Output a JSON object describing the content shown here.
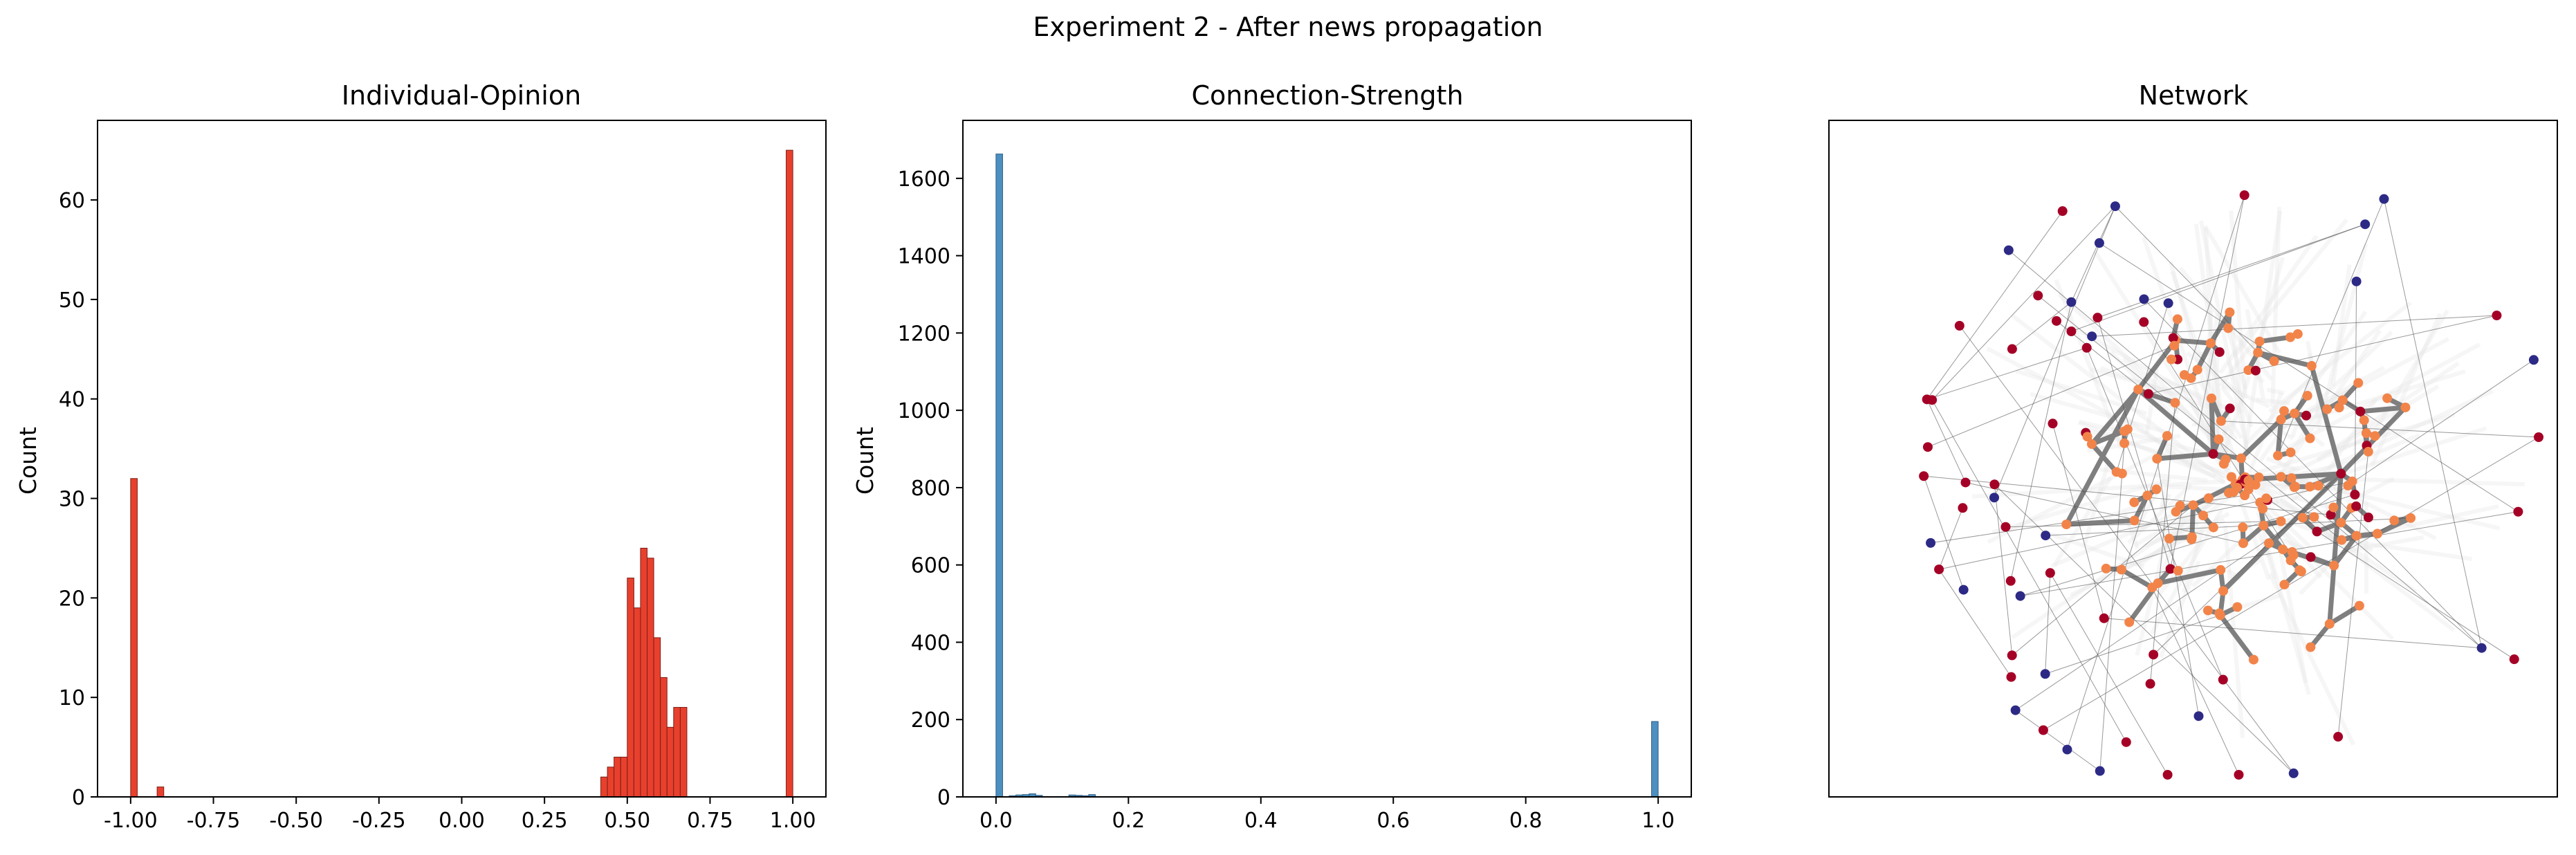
{
  "figure": {
    "suptitle": "Experiment 2 - After news propagation"
  },
  "chart_data": [
    {
      "type": "bar",
      "title": "Individual-Opinion",
      "xlabel": "",
      "ylabel": "Count",
      "xlim": [
        -1.1,
        1.1
      ],
      "ylim": [
        0,
        68
      ],
      "xticks": [
        "-1.00",
        "-0.75",
        "-0.50",
        "-0.25",
        "0.00",
        "0.25",
        "0.50",
        "0.75",
        "1.00"
      ],
      "xtick_values": [
        -1.0,
        -0.75,
        -0.5,
        -0.25,
        0.0,
        0.25,
        0.5,
        0.75,
        1.0
      ],
      "yticks": [
        "0",
        "10",
        "20",
        "30",
        "40",
        "50",
        "60"
      ],
      "ytick_values": [
        0,
        10,
        20,
        30,
        40,
        50,
        60
      ],
      "bin_width": 0.02,
      "bin_starts": [
        -1.0,
        -0.92,
        0.42,
        0.44,
        0.46,
        0.48,
        0.5,
        0.52,
        0.54,
        0.56,
        0.58,
        0.6,
        0.62,
        0.64,
        0.66,
        0.98
      ],
      "values": [
        32,
        1,
        2,
        3,
        4,
        4,
        22,
        19,
        25,
        24,
        16,
        12,
        7,
        9,
        9,
        65
      ],
      "color": "#e8402d",
      "edge_color": "#7a1f17"
    },
    {
      "type": "bar",
      "title": "Connection-Strength",
      "xlabel": "",
      "ylabel": "Count",
      "xlim": [
        -0.05,
        1.05
      ],
      "ylim": [
        0,
        1750
      ],
      "xticks": [
        "0.0",
        "0.2",
        "0.4",
        "0.6",
        "0.8",
        "1.0"
      ],
      "xtick_values": [
        0.0,
        0.2,
        0.4,
        0.6,
        0.8,
        1.0
      ],
      "yticks": [
        "0",
        "200",
        "400",
        "600",
        "800",
        "1000",
        "1200",
        "1400",
        "1600"
      ],
      "ytick_values": [
        0,
        200,
        400,
        600,
        800,
        1000,
        1200,
        1400,
        1600
      ],
      "bin_width": 0.01,
      "bin_starts": [
        0.0,
        0.02,
        0.03,
        0.04,
        0.05,
        0.06,
        0.11,
        0.12,
        0.13,
        0.14,
        0.99
      ],
      "values": [
        1663,
        3,
        5,
        6,
        8,
        4,
        5,
        4,
        3,
        6,
        195
      ],
      "color": "#4c8fc0",
      "edge_color": "#2f5f86"
    },
    {
      "type": "scatter",
      "title": "Network",
      "colors": {
        "positive": "#f2844a",
        "negative": "#a50026",
        "neutral": "#2d2a86",
        "edge": "#7f7f7f"
      }
    }
  ]
}
